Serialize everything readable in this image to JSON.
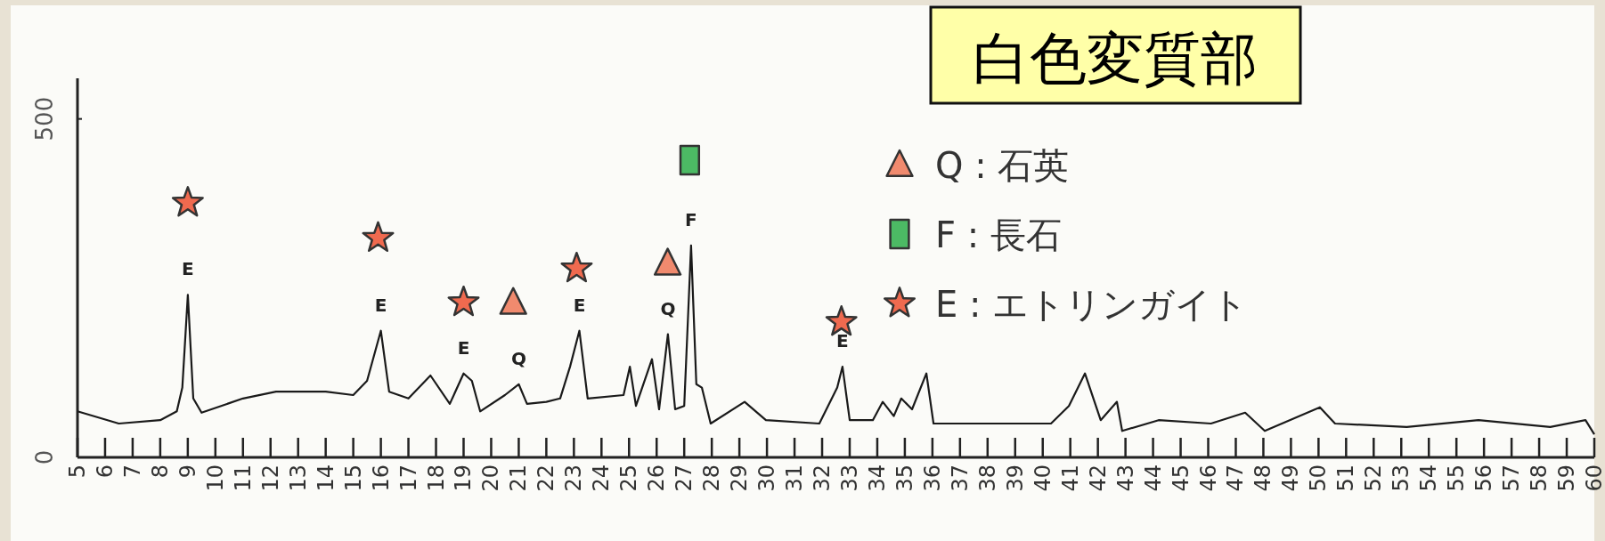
{
  "chart_data": {
    "type": "line",
    "title": "白色変質部",
    "xlim": [
      5,
      60
    ],
    "xticks": [
      5,
      6,
      7,
      8,
      9,
      10,
      11,
      12,
      13,
      14,
      15,
      16,
      17,
      18,
      19,
      20,
      21,
      22,
      23,
      24,
      25,
      26,
      27,
      28,
      29,
      30,
      31,
      32,
      33,
      34,
      35,
      36,
      37,
      38,
      39,
      40,
      41,
      42,
      43,
      44,
      45,
      46,
      47,
      48,
      49,
      50,
      51,
      52,
      53,
      54,
      55,
      56,
      57,
      58,
      59,
      60
    ],
    "ylim": [
      0,
      560
    ],
    "yticks": [
      0,
      500
    ],
    "grid": false,
    "legend": "top right",
    "series": [
      {
        "color": "#1a1a1a",
        "marker": "none",
        "x": [
          5,
          6.5,
          8,
          8.6,
          8.8,
          9.0,
          9.2,
          9.5,
          11,
          12.2,
          14,
          15,
          15.5,
          16.0,
          16.3,
          17,
          17.8,
          18.5,
          19,
          19.3,
          19.6,
          20.5,
          21,
          21.3,
          22,
          22.5,
          22.86,
          23.2,
          23.5,
          24.8,
          25.03,
          25.25,
          25.83,
          26.09,
          26.41,
          26.67,
          27.0,
          27.25,
          27.44,
          27.64,
          27.96,
          29.19,
          29.96,
          31.9,
          32.55,
          32.74,
          33.0,
          33.84,
          34.2,
          34.6,
          34.87,
          35.26,
          35.78,
          36.04,
          38.36,
          40.3,
          40.95,
          41.53,
          42.1,
          42.69,
          42.88,
          44.2,
          46.1,
          47.34,
          48.05,
          50.05,
          50.6,
          53.2,
          55.8,
          58.4,
          59.68,
          60.0
        ],
        "values": [
          68,
          50,
          55,
          68,
          103,
          240,
          87,
          66,
          87,
          97,
          97,
          92,
          113,
          187,
          97,
          87,
          121,
          79,
          124,
          113,
          68,
          92,
          108,
          79,
          82,
          87,
          134,
          187,
          87,
          92,
          134,
          76,
          145,
          71,
          182,
          71,
          76,
          313,
          108,
          103,
          50,
          82,
          55,
          50,
          103,
          134,
          55,
          55,
          82,
          61,
          87,
          71,
          124,
          50,
          50,
          50,
          76,
          124,
          55,
          82,
          39,
          55,
          50,
          66,
          39,
          74,
          50,
          45,
          55,
          45,
          55,
          34
        ]
      },
      {
        "type": "scatter",
        "name": "Q : 石英",
        "color": "#f08a6e",
        "marker": "triangle",
        "x": [
          20.8,
          26.4
        ],
        "values": [
          229,
          287
        ]
      },
      {
        "type": "scatter",
        "name": "F : 長石",
        "color": "#4cba64",
        "marker": "square",
        "x": [
          27.2
        ],
        "values": [
          439
        ]
      },
      {
        "type": "scatter",
        "name": "E : エトリンガイト",
        "color": "#ef6a4f",
        "marker": "star",
        "x": [
          9.0,
          15.9,
          19.0,
          23.1,
          32.7
        ],
        "values": [
          376,
          324,
          229,
          279,
          200
        ]
      }
    ],
    "annotations": [
      {
        "text": "E",
        "x": 9.0,
        "y": 240
      },
      {
        "text": "E",
        "x": 16.0,
        "y": 187
      },
      {
        "text": "E",
        "x": 19.0,
        "y": 124
      },
      {
        "text": "Q",
        "x": 21.0,
        "y": 108
      },
      {
        "text": "E",
        "x": 23.2,
        "y": 187
      },
      {
        "text": "Q",
        "x": 26.41,
        "y": 182
      },
      {
        "text": "F",
        "x": 27.25,
        "y": 313
      },
      {
        "text": "E",
        "x": 32.74,
        "y": 134
      }
    ]
  }
}
